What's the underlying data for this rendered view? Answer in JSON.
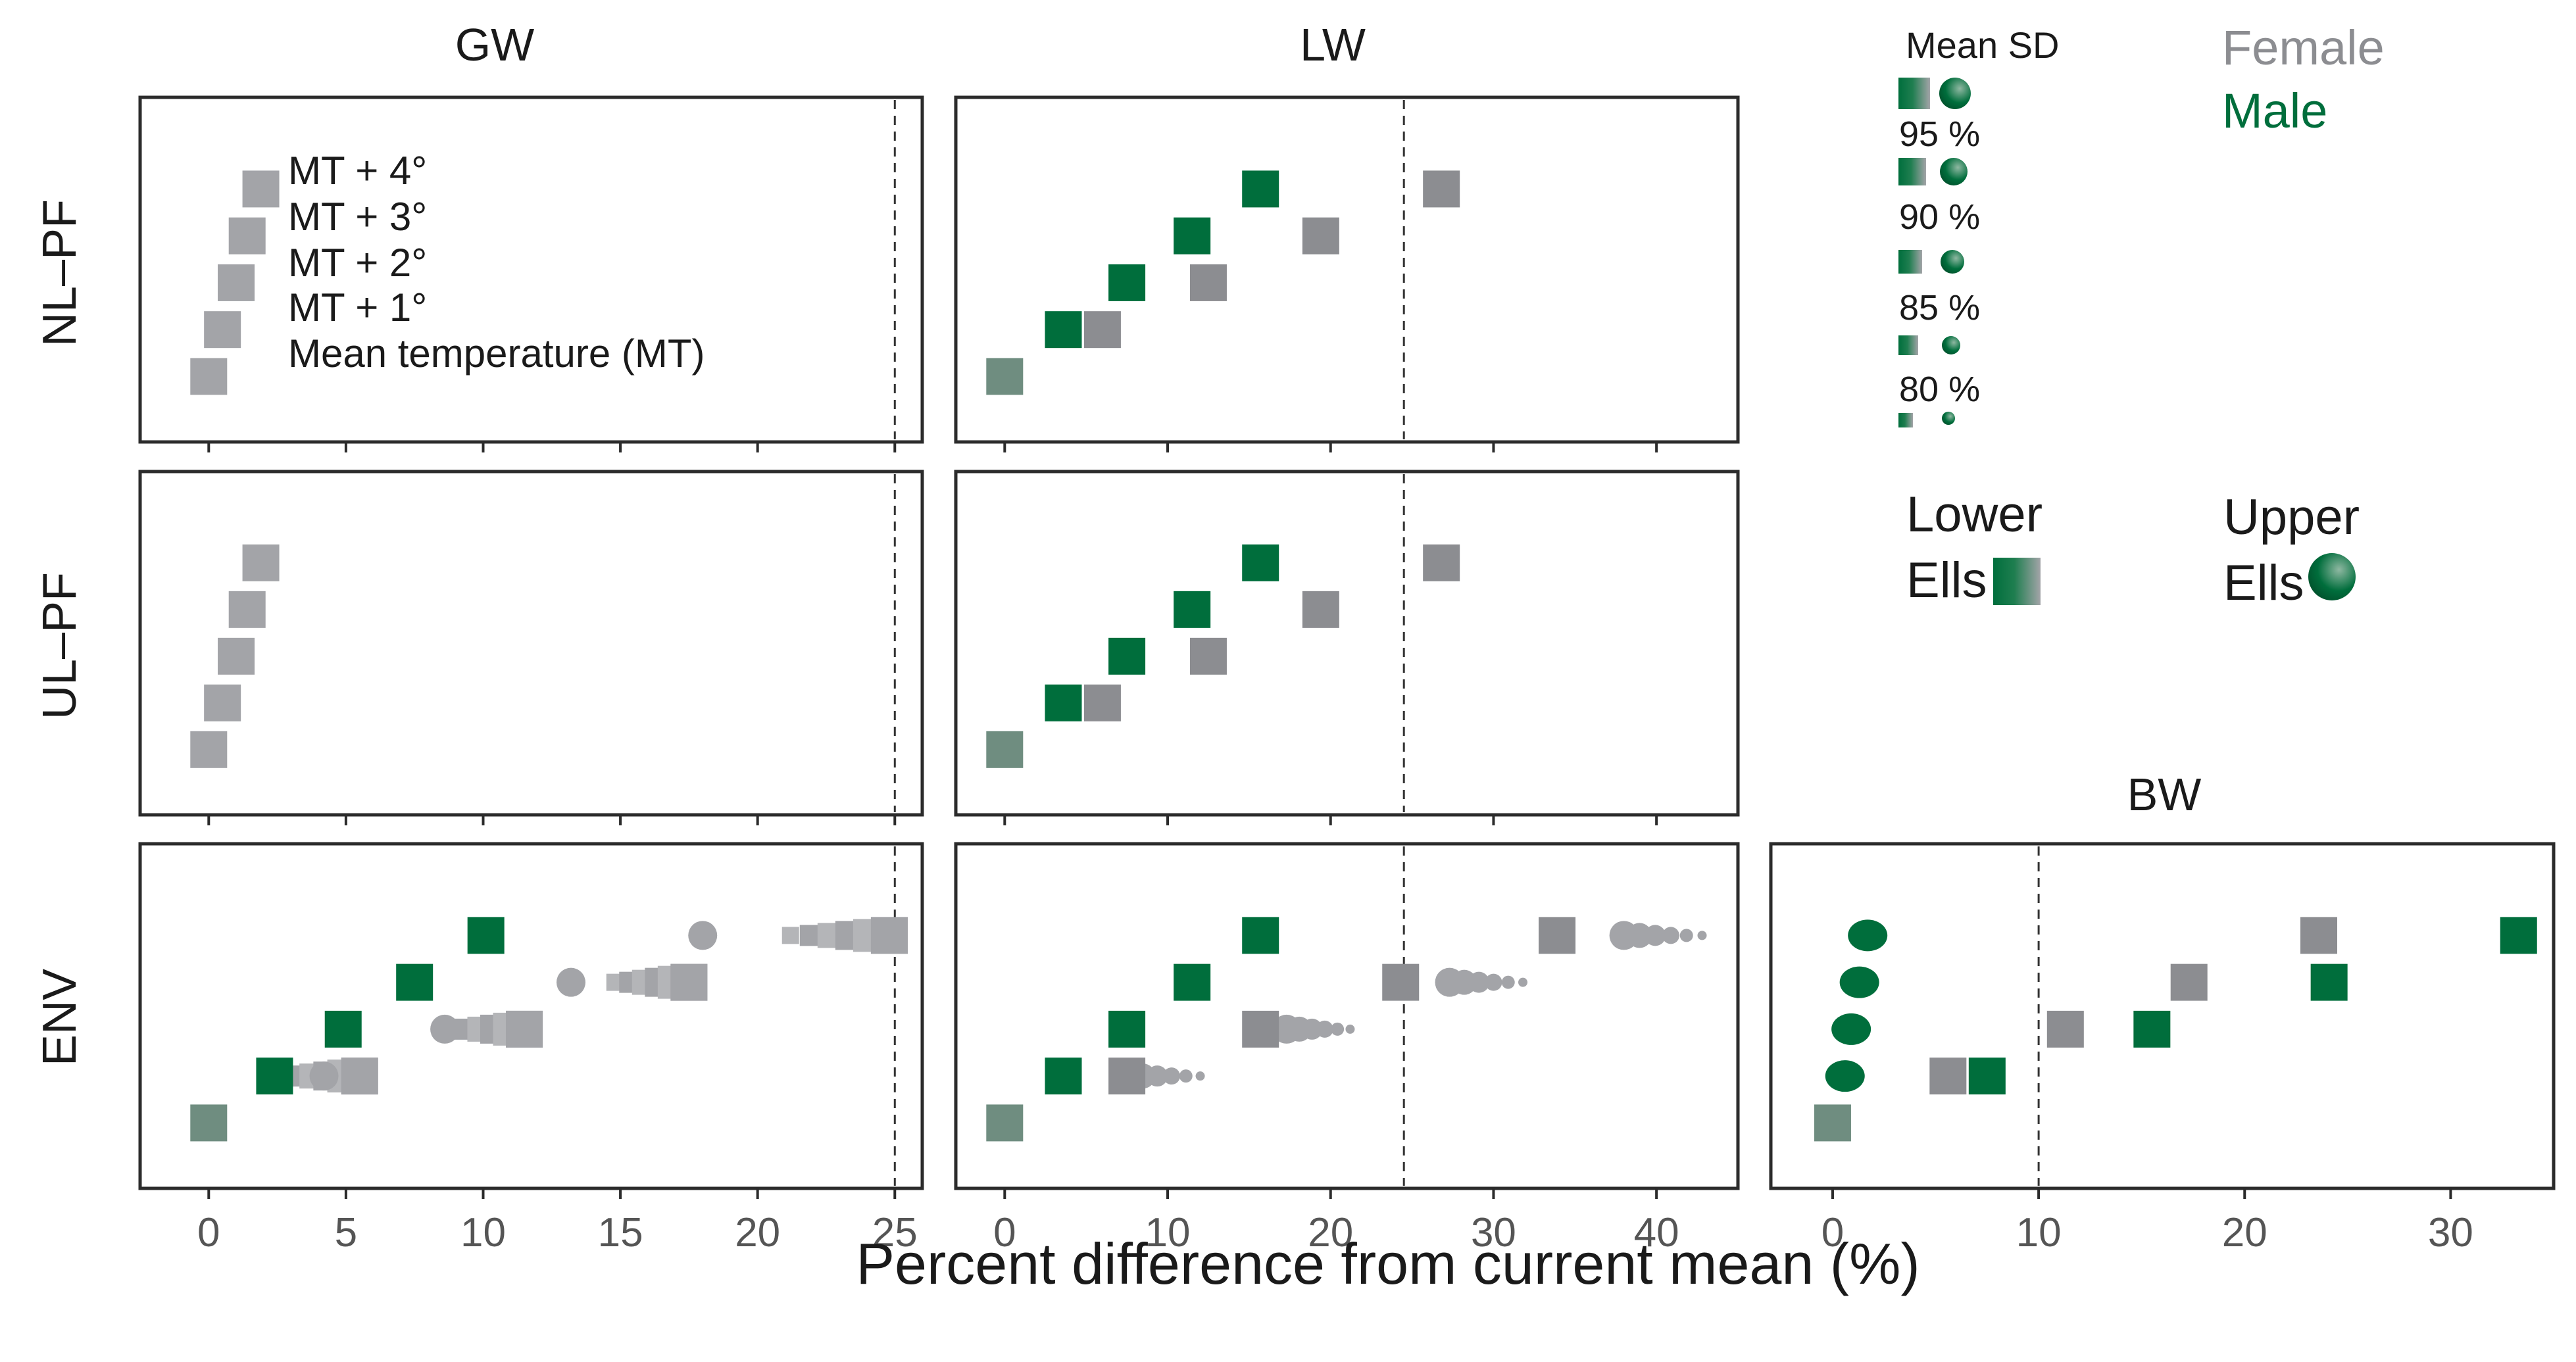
{
  "colors": {
    "female": "#a3a4a8",
    "female_dark": "#8c8d91",
    "male": "#006e3c",
    "male_light": "#2d8a5b",
    "frame": "#2b2b2b"
  },
  "column_titles": {
    "GW": "GW",
    "LW": "LW",
    "BW": "BW"
  },
  "row_titles": {
    "NL_PF": "NL–PF",
    "UL_PF": "UL–PF",
    "ENV": "ENV"
  },
  "x_axis_title": "Percent difference from current mean (%)",
  "legend": {
    "mean_sd_title": "Mean SD",
    "sd_levels": [
      "95 %",
      "90 %",
      "85 %",
      "80 %"
    ],
    "female_label": "Female",
    "male_label": "Male",
    "lower_label_1": "Lower",
    "lower_label_2": "Ells",
    "upper_label_1": "Upper",
    "upper_label_2": "Ells",
    "temperature_items": [
      "MT + 4°",
      "MT + 3°",
      "MT + 2°",
      "MT + 1°",
      "Mean temperature (MT)"
    ]
  },
  "chart_data": [
    {
      "type": "scatter",
      "panel": "NL-PF / GW",
      "title": "GW",
      "xlabel": "",
      "ylabel": "NL–PF",
      "xlim": [
        -2.5,
        26
      ],
      "ticks": [
        0,
        5,
        10,
        15,
        20,
        25
      ],
      "tick_labels": [
        "",
        "",
        "",
        "",
        "",
        ""
      ],
      "reference_line": 25,
      "series": [
        {
          "name": "Female",
          "x": [
            0.0,
            0.5,
            1.0,
            1.4,
            1.9
          ],
          "levels": [
            0,
            1,
            2,
            3,
            4
          ]
        }
      ]
    },
    {
      "type": "scatter",
      "panel": "NL-PF / LW",
      "title": "LW",
      "xlabel": "",
      "ylabel": "",
      "xlim": [
        -3,
        45
      ],
      "ticks": [
        0,
        10,
        20,
        30,
        40
      ],
      "tick_labels": [
        "",
        "",
        "",
        "",
        ""
      ],
      "reference_line": 24.5,
      "series": [
        {
          "name": "Male",
          "x": [
            0.0,
            3.6,
            7.5,
            11.5,
            15.7
          ],
          "levels": [
            0,
            1,
            2,
            3,
            4
          ]
        },
        {
          "name": "Female",
          "x": [
            0.0,
            6.0,
            12.5,
            19.4,
            26.8
          ],
          "levels": [
            0,
            1,
            2,
            3,
            4
          ]
        }
      ]
    },
    {
      "type": "scatter",
      "panel": "UL-PF / GW",
      "title": "",
      "xlabel": "",
      "ylabel": "UL–PF",
      "xlim": [
        -2.5,
        26
      ],
      "ticks": [
        0,
        5,
        10,
        15,
        20,
        25
      ],
      "tick_labels": [
        "",
        "",
        "",
        "",
        "",
        ""
      ],
      "reference_line": 25,
      "series": [
        {
          "name": "Female",
          "x": [
            0.0,
            0.5,
            1.0,
            1.4,
            1.9
          ],
          "levels": [
            0,
            1,
            2,
            3,
            4
          ]
        }
      ]
    },
    {
      "type": "scatter",
      "panel": "UL-PF / LW",
      "title": "",
      "xlabel": "",
      "ylabel": "",
      "xlim": [
        -3,
        45
      ],
      "ticks": [
        0,
        10,
        20,
        30,
        40
      ],
      "tick_labels": [
        "",
        "",
        "",
        "",
        ""
      ],
      "reference_line": 24.5,
      "series": [
        {
          "name": "Male",
          "x": [
            0.0,
            3.6,
            7.5,
            11.5,
            15.7
          ],
          "levels": [
            0,
            1,
            2,
            3,
            4
          ]
        },
        {
          "name": "Female",
          "x": [
            0.0,
            6.0,
            12.5,
            19.4,
            26.8
          ],
          "levels": [
            0,
            1,
            2,
            3,
            4
          ]
        }
      ]
    },
    {
      "type": "scatter",
      "panel": "ENV / GW",
      "title": "",
      "xlabel": "",
      "ylabel": "ENV",
      "xlim": [
        -2.5,
        26
      ],
      "ticks": [
        0,
        5,
        10,
        15,
        20,
        25
      ],
      "tick_labels": [
        "0",
        "5",
        "10",
        "15",
        "20",
        "25"
      ],
      "reference_line": 25,
      "series": [
        {
          "name": "Male",
          "x": [
            0.0,
            2.4,
            4.9,
            7.5,
            10.1
          ],
          "levels": [
            0,
            1,
            2,
            3,
            4
          ]
        },
        {
          "name": "Female",
          "x": [
            0.0,
            5.5,
            11.5,
            17.5,
            24.8
          ],
          "levels": [
            0,
            1,
            2,
            3,
            4
          ]
        },
        {
          "name": "Female upper",
          "x": [
            4.2,
            8.6,
            13.2,
            18.0
          ],
          "levels": [
            1,
            2,
            3,
            4
          ]
        },
        {
          "name": "Female lower range start",
          "x": [
            2.6,
            8.8,
            14.8,
            21.2
          ],
          "levels": [
            1,
            2,
            3,
            4
          ]
        }
      ]
    },
    {
      "type": "scatter",
      "panel": "ENV / LW",
      "title": "",
      "xlabel": "",
      "ylabel": "",
      "xlim": [
        -3,
        45
      ],
      "ticks": [
        0,
        10,
        20,
        30,
        40
      ],
      "tick_labels": [
        "0",
        "10",
        "20",
        "30",
        "40"
      ],
      "reference_line": 24.5,
      "series": [
        {
          "name": "Male",
          "x": [
            0.0,
            3.6,
            7.5,
            11.5,
            15.7
          ],
          "levels": [
            0,
            1,
            2,
            3,
            4
          ]
        },
        {
          "name": "Female",
          "x": [
            0.0,
            7.5,
            15.7,
            24.3,
            33.9
          ],
          "levels": [
            0,
            1,
            2,
            3,
            4
          ]
        },
        {
          "name": "Female upper",
          "x": [
            7.6,
            17.3,
            27.3,
            38.0
          ],
          "levels": [
            1,
            2,
            3,
            4
          ]
        },
        {
          "name": "Female upper range end",
          "x": [
            12.0,
            21.2,
            31.8,
            42.8
          ],
          "levels": [
            1,
            2,
            3,
            4
          ]
        }
      ]
    },
    {
      "type": "scatter",
      "panel": "ENV / BW",
      "title": "BW",
      "xlabel": "",
      "ylabel": "",
      "xlim": [
        -3,
        35
      ],
      "ticks": [
        0,
        10,
        20,
        30
      ],
      "tick_labels": [
        "0",
        "10",
        "20",
        "30"
      ],
      "reference_line": 10,
      "series": [
        {
          "name": "Male upper",
          "x": [
            1.7,
            1.3,
            0.9,
            0.6
          ],
          "levels": [
            4,
            3,
            2,
            1
          ]
        },
        {
          "name": "Male",
          "x": [
            0.0,
            7.5,
            15.5,
            24.1,
            33.3
          ],
          "levels": [
            0,
            1,
            2,
            3,
            4
          ]
        },
        {
          "name": "Female",
          "x": [
            0.0,
            5.6,
            11.3,
            17.3,
            23.6
          ],
          "levels": [
            0,
            1,
            2,
            3,
            4
          ]
        }
      ]
    }
  ]
}
